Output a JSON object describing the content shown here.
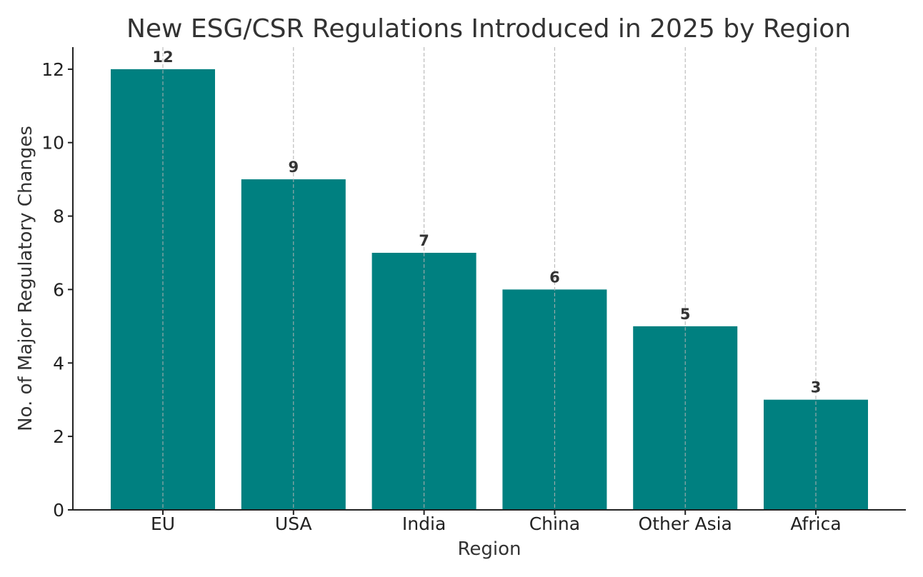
{
  "chart_data": {
    "type": "bar",
    "title": "New ESG/CSR Regulations Introduced in 2025 by Region",
    "xlabel": "Region",
    "ylabel": "No. of Major Regulatory Changes",
    "categories": [
      "EU",
      "USA",
      "India",
      "China",
      "Other Asia",
      "Africa"
    ],
    "values": [
      12,
      9,
      7,
      6,
      5,
      3
    ],
    "data_labels": [
      "12",
      "9",
      "7",
      "6",
      "5",
      "3"
    ],
    "ylim": [
      0,
      12.6
    ],
    "yticks": [
      0,
      2,
      4,
      6,
      8,
      10,
      12
    ],
    "ytick_labels": [
      "0",
      "2",
      "4",
      "6",
      "8",
      "10",
      "12"
    ],
    "bar_color": "#008080",
    "grid": "vertical dashed",
    "legend": "none"
  }
}
